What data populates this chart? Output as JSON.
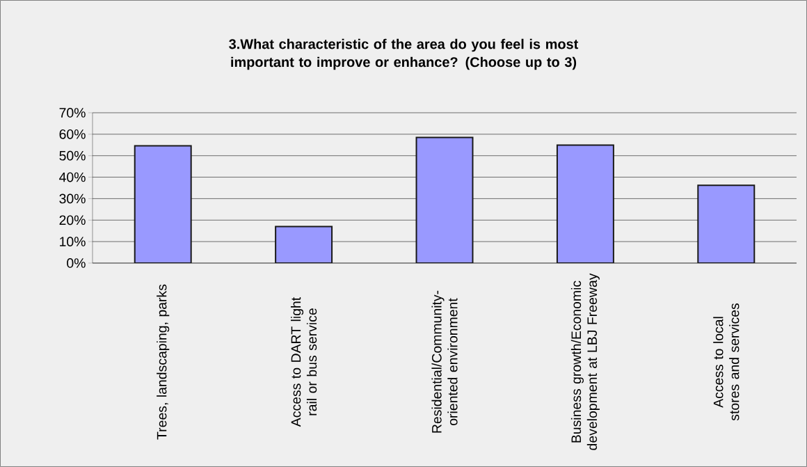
{
  "chart_data": {
    "type": "bar",
    "title": "3.What characteristic of the area do you feel is most important to improve or enhance? (Choose up to 3)",
    "categories": [
      "Trees, landscaping, parks",
      "Access to DART light rail or bus service",
      "Residential/Community-oriented environment",
      "Business growth/Economic development at LBJ Freeway",
      "Access to local stores and services"
    ],
    "values": [
      54.6,
      17,
      58.5,
      54.9,
      36.2
    ],
    "color": "#9999ff",
    "ylim": [
      0,
      70
    ],
    "yticks": [
      {
        "value": 0,
        "label": "0%"
      },
      {
        "value": 10,
        "label": "10%"
      },
      {
        "value": 20,
        "label": "20%"
      },
      {
        "value": 30,
        "label": "30%"
      },
      {
        "value": 40,
        "label": "40%"
      },
      {
        "value": 50,
        "label": "50%"
      },
      {
        "value": 60,
        "label": "60%"
      },
      {
        "value": 70,
        "label": "70%"
      }
    ],
    "grid": "y"
  }
}
